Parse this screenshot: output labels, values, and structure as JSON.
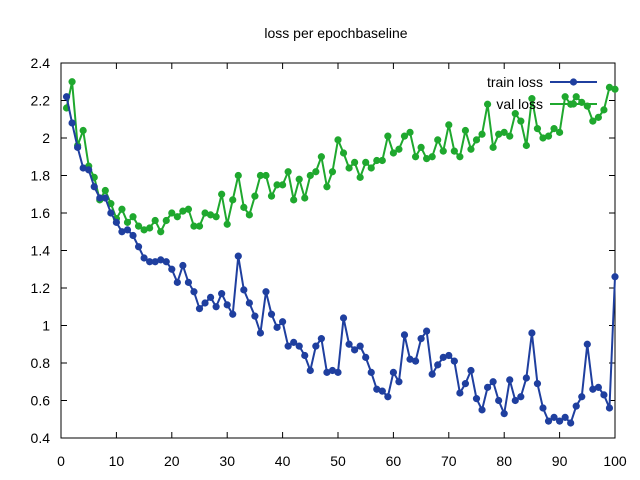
{
  "chart_data": {
    "type": "line",
    "title": "loss per epochbaseline",
    "xlabel": "",
    "ylabel": "",
    "xlim": [
      0,
      100
    ],
    "ylim": [
      0.4,
      2.4
    ],
    "x_ticks": [
      0,
      10,
      20,
      30,
      40,
      50,
      60,
      70,
      80,
      90,
      100
    ],
    "y_ticks": [
      0.4,
      0.6,
      0.8,
      1,
      1.2,
      1.4,
      1.6,
      1.8,
      2,
      2.2,
      2.4
    ],
    "y_tick_labels": [
      "0.4",
      "0.6",
      "0.8",
      "1",
      "1.2",
      "1.4",
      "1.6",
      "1.8",
      "2",
      "2.2",
      "2.4"
    ],
    "grid": false,
    "legend_position": "top-right",
    "x": [
      1,
      2,
      3,
      4,
      5,
      6,
      7,
      8,
      9,
      10,
      11,
      12,
      13,
      14,
      15,
      16,
      17,
      18,
      19,
      20,
      21,
      22,
      23,
      24,
      25,
      26,
      27,
      28,
      29,
      30,
      31,
      32,
      33,
      34,
      35,
      36,
      37,
      38,
      39,
      40,
      41,
      42,
      43,
      44,
      45,
      46,
      47,
      48,
      49,
      50,
      51,
      52,
      53,
      54,
      55,
      56,
      57,
      58,
      59,
      60,
      61,
      62,
      63,
      64,
      65,
      66,
      67,
      68,
      69,
      70,
      71,
      72,
      73,
      74,
      75,
      76,
      77,
      78,
      79,
      80,
      81,
      82,
      83,
      84,
      85,
      86,
      87,
      88,
      89,
      90,
      91,
      92,
      93,
      94,
      95,
      96,
      97,
      98,
      99,
      100
    ],
    "series": [
      {
        "name": "train loss",
        "color": "#1f3f9f",
        "values": [
          2.22,
          2.08,
          1.95,
          1.84,
          1.83,
          1.74,
          1.68,
          1.68,
          1.6,
          1.55,
          1.5,
          1.51,
          1.48,
          1.42,
          1.36,
          1.34,
          1.34,
          1.35,
          1.34,
          1.3,
          1.23,
          1.32,
          1.23,
          1.18,
          1.09,
          1.12,
          1.15,
          1.1,
          1.17,
          1.11,
          1.06,
          1.37,
          1.19,
          1.12,
          1.05,
          0.96,
          1.18,
          1.06,
          0.99,
          1.02,
          0.89,
          0.91,
          0.89,
          0.84,
          0.76,
          0.89,
          0.93,
          0.75,
          0.76,
          0.75,
          1.04,
          0.9,
          0.87,
          0.89,
          0.83,
          0.75,
          0.66,
          0.65,
          0.62,
          0.75,
          0.7,
          0.95,
          0.82,
          0.81,
          0.93,
          0.97,
          0.74,
          0.79,
          0.83,
          0.84,
          0.81,
          0.64,
          0.69,
          0.76,
          0.61,
          0.55,
          0.67,
          0.7,
          0.6,
          0.53,
          0.71,
          0.6,
          0.62,
          0.72,
          0.96,
          0.69,
          0.56,
          0.49,
          0.51,
          0.49,
          0.51,
          0.48,
          0.57,
          0.62,
          0.9,
          0.66,
          0.67,
          0.63,
          0.56,
          1.26
        ]
      },
      {
        "name": "val loss",
        "color": "#1fa82e",
        "values": [
          2.16,
          2.3,
          1.96,
          2.04,
          1.85,
          1.79,
          1.67,
          1.72,
          1.65,
          1.57,
          1.62,
          1.55,
          1.58,
          1.53,
          1.51,
          1.52,
          1.56,
          1.5,
          1.56,
          1.6,
          1.58,
          1.61,
          1.62,
          1.53,
          1.53,
          1.6,
          1.59,
          1.58,
          1.7,
          1.54,
          1.67,
          1.8,
          1.63,
          1.59,
          1.69,
          1.8,
          1.8,
          1.69,
          1.75,
          1.75,
          1.82,
          1.67,
          1.78,
          1.68,
          1.8,
          1.82,
          1.9,
          1.74,
          1.82,
          1.99,
          1.92,
          1.84,
          1.87,
          1.79,
          1.87,
          1.84,
          1.88,
          1.88,
          2.01,
          1.92,
          1.94,
          2.01,
          2.03,
          1.9,
          1.95,
          1.89,
          1.9,
          1.99,
          1.93,
          2.07,
          1.93,
          1.9,
          2.04,
          1.94,
          1.99,
          2.02,
          2.18,
          1.95,
          2.02,
          2.03,
          2.01,
          2.13,
          2.09,
          1.96,
          2.21,
          2.05,
          2.0,
          2.01,
          2.05,
          2.03,
          2.22,
          2.18,
          2.22,
          2.19,
          2.17,
          2.09,
          2.11,
          2.15,
          2.27,
          2.26
        ]
      }
    ]
  }
}
